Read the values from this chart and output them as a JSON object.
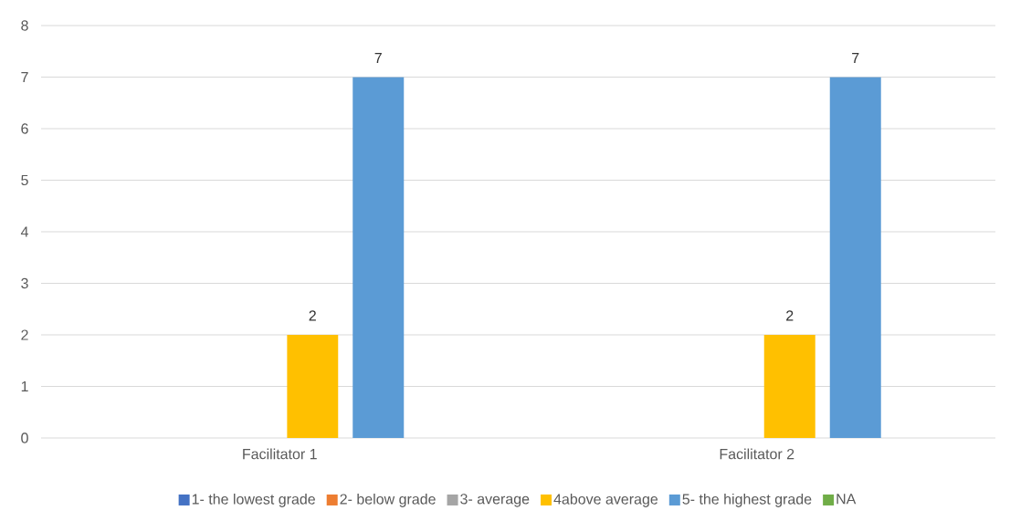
{
  "chart_data": {
    "type": "bar",
    "categories": [
      "Facilitator 1",
      "Facilitator 2"
    ],
    "series": [
      {
        "name": "1- the lowest grade",
        "color": "#4472c4",
        "values": [
          null,
          null
        ]
      },
      {
        "name": "2- below grade",
        "color": "#ed7d31",
        "values": [
          null,
          null
        ]
      },
      {
        "name": "3- average",
        "color": "#a5a5a5",
        "values": [
          null,
          null
        ]
      },
      {
        "name": "4above average",
        "color": "#ffc000",
        "values": [
          2,
          2
        ]
      },
      {
        "name": "5- the highest grade",
        "color": "#5b9bd5",
        "values": [
          7,
          7
        ]
      },
      {
        "name": "NA",
        "color": "#70ad47",
        "values": [
          null,
          null
        ]
      }
    ],
    "ylim": [
      0,
      8
    ],
    "yticks": [
      0,
      1,
      2,
      3,
      4,
      5,
      6,
      7,
      8
    ],
    "grid": "y",
    "legend": "bottom",
    "data_labels": true
  }
}
